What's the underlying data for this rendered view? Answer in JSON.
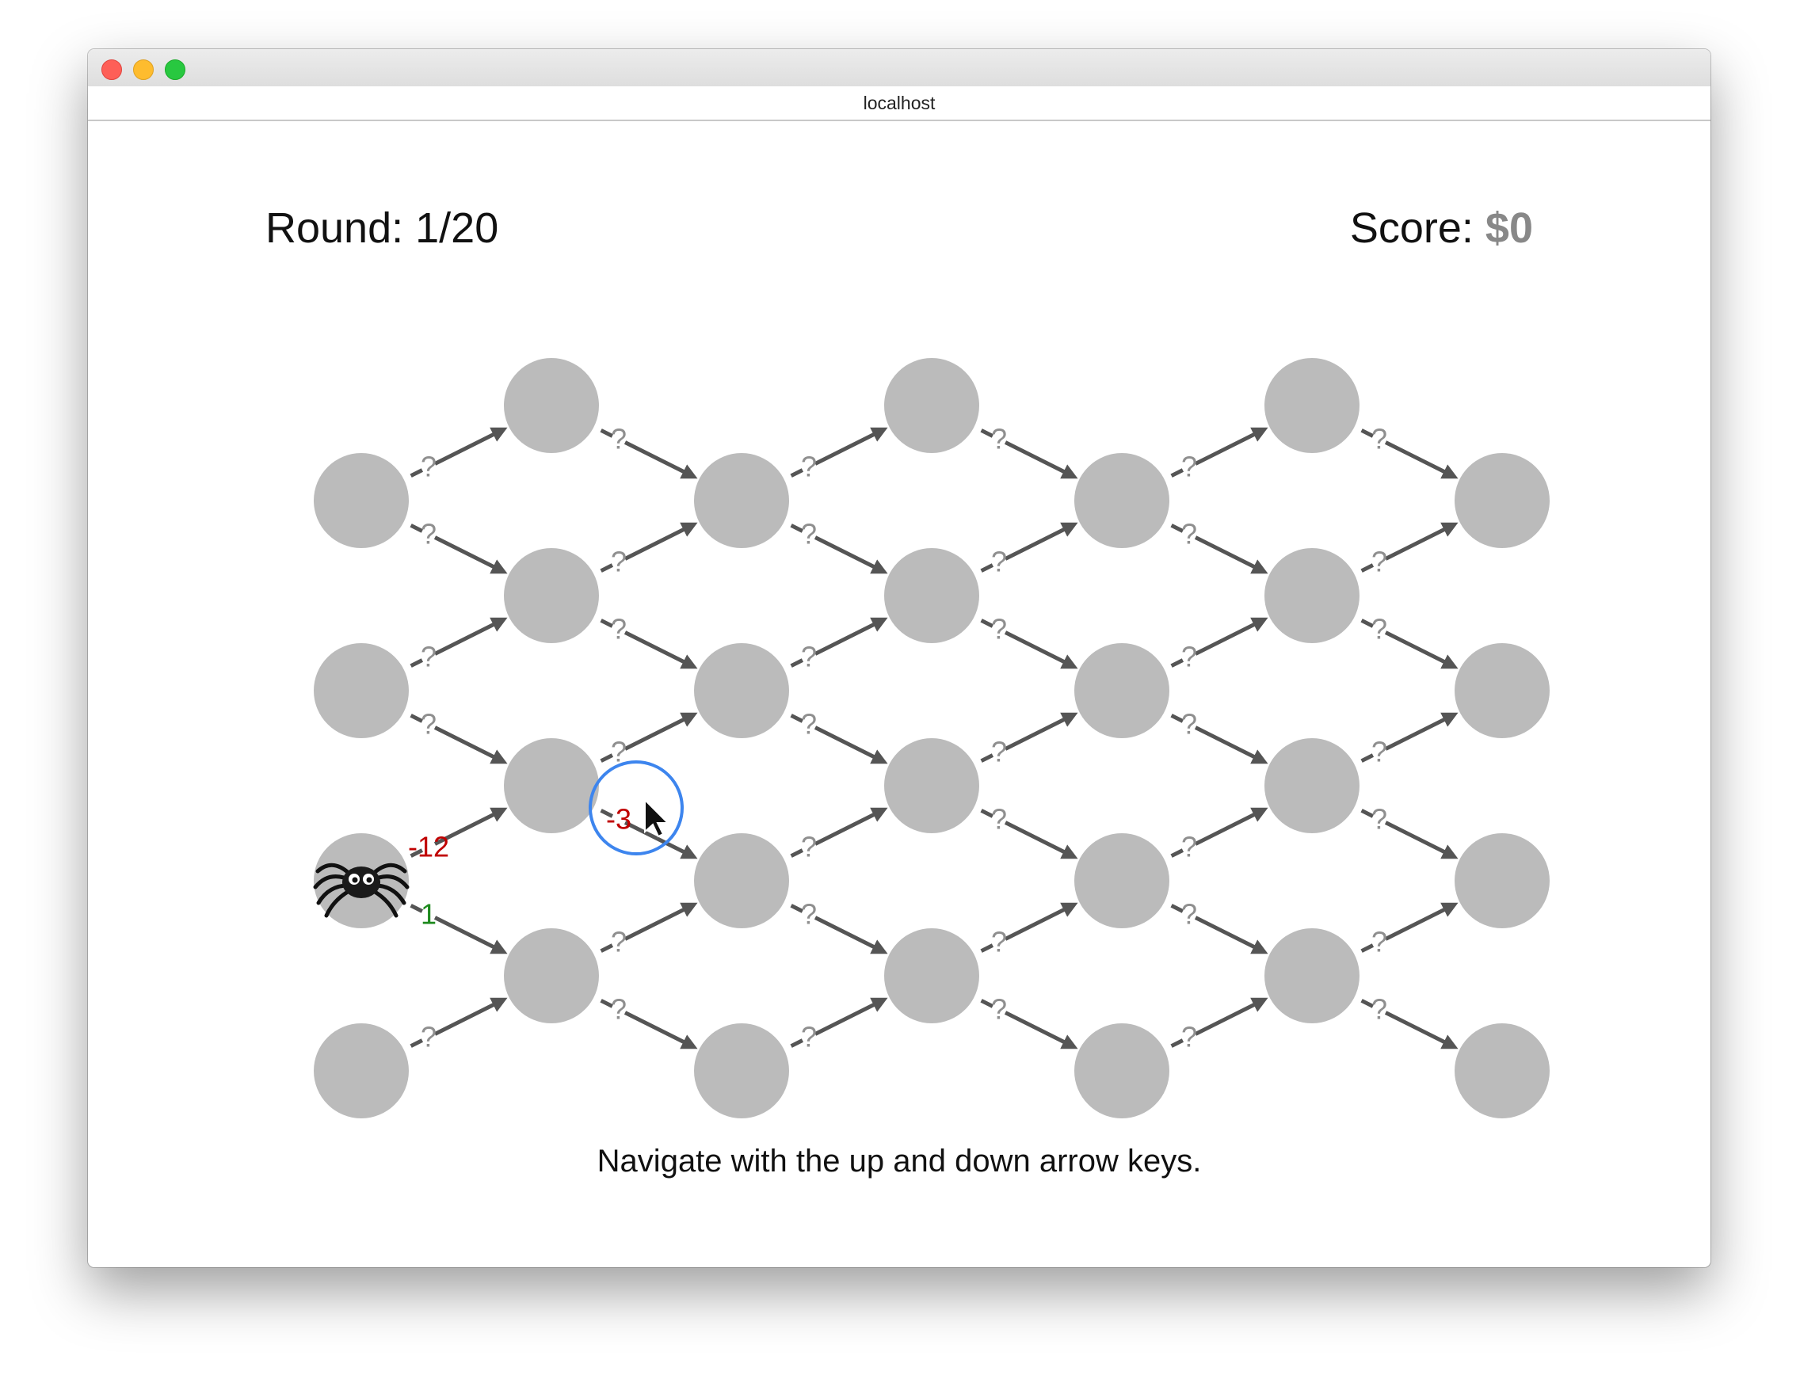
{
  "browser": {
    "url": "localhost"
  },
  "game": {
    "round_label": "Round: 1/20",
    "score_label": "Score: ",
    "score_value": "$0",
    "instructions": "Navigate with the up and down arrow keys.",
    "unknown_label": "?",
    "revealed": {
      "up": "-12",
      "down": "1",
      "next_down": "-3"
    }
  },
  "colors": {
    "node": "#bbbbbb",
    "arrow": "#555555",
    "unknown_label": "#8f8f8f",
    "negative": "#c00000",
    "positive": "#1e8a1e",
    "highlight_ring": "#3d85ee"
  },
  "icons": {
    "player": "spider-icon",
    "cursor": "mouse-pointer-icon"
  }
}
